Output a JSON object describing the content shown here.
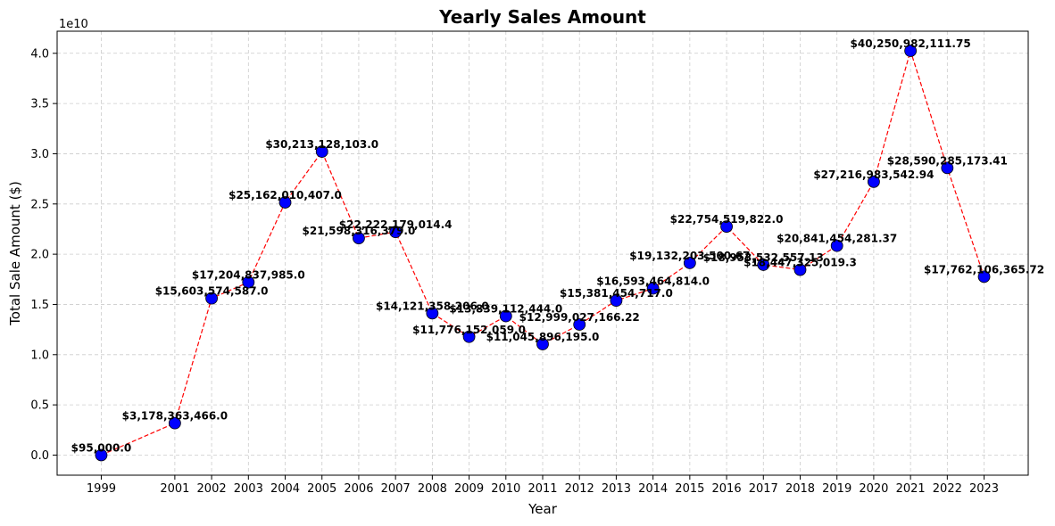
{
  "chart_data": {
    "type": "line",
    "title": "Yearly Sales Amount",
    "xlabel": "Year",
    "ylabel": "Total Sale Amount ($)",
    "y_offset_label": "1e10",
    "y_scale": 10000000000,
    "ylim": [
      -0.2,
      4.22
    ],
    "yticks": [
      0.0,
      0.5,
      1.0,
      1.5,
      2.0,
      2.5,
      3.0,
      3.5,
      4.0
    ],
    "ytick_labels": [
      "0.0",
      "0.5",
      "1.0",
      "1.5",
      "2.0",
      "2.5",
      "3.0",
      "3.5",
      "4.0"
    ],
    "xlim": [
      1997.8,
      2024.2
    ],
    "grid": true,
    "line_color": "#ff0000",
    "line_style": "dashed",
    "marker_color": "#0000ff",
    "marker_edge_color": "#000000",
    "x": [
      1999,
      2001,
      2002,
      2003,
      2004,
      2005,
      2006,
      2007,
      2008,
      2009,
      2010,
      2011,
      2012,
      2013,
      2014,
      2015,
      2016,
      2017,
      2018,
      2019,
      2020,
      2021,
      2022,
      2023
    ],
    "xtick_labels": [
      "1999",
      "2001",
      "2002",
      "2003",
      "2004",
      "2005",
      "2006",
      "2007",
      "2008",
      "2009",
      "2010",
      "2011",
      "2012",
      "2013",
      "2014",
      "2015",
      "2016",
      "2017",
      "2018",
      "2019",
      "2020",
      "2021",
      "2022",
      "2023"
    ],
    "y": [
      95000.0,
      3178363466.0,
      15603574587.0,
      17204837985.0,
      25162010407.0,
      30213128103.0,
      21598316379.0,
      22222179014.4,
      14121358206.0,
      11776152059.0,
      13839112444.0,
      11045896195.0,
      12999027166.22,
      15381454717.0,
      16593464814.0,
      19132203500.67,
      22754519822.0,
      18953532557.13,
      18447325019.3,
      20841454281.37,
      27216983542.94,
      40250982111.75,
      28590285173.41,
      17762106365.72
    ],
    "labels": [
      "$95,000.0",
      "$3,178,363,466.0",
      "$15,603,574,587.0",
      "$17,204,837,985.0",
      "$25,162,010,407.0",
      "$30,213,128,103.0",
      "$21,598,316,379.0",
      "$22,222,179,014.4",
      "$14,121,358,206.0",
      "$11,776,152,059.0",
      "$13,839,112,444.0",
      "$11,045,896,195.0",
      "$12,999,027,166.22",
      "$15,381,454,717.0",
      "$16,593,464,814.0",
      "$19,132,203,500.67",
      "$22,754,519,822.0",
      "$18,953,532,557.13",
      "$18,447,325,019.3",
      "$20,841,454,281.37",
      "$27,216,983,542.94",
      "$40,250,982,111.75",
      "$28,590,285,173.41",
      "$17,762,106,365.72"
    ]
  }
}
